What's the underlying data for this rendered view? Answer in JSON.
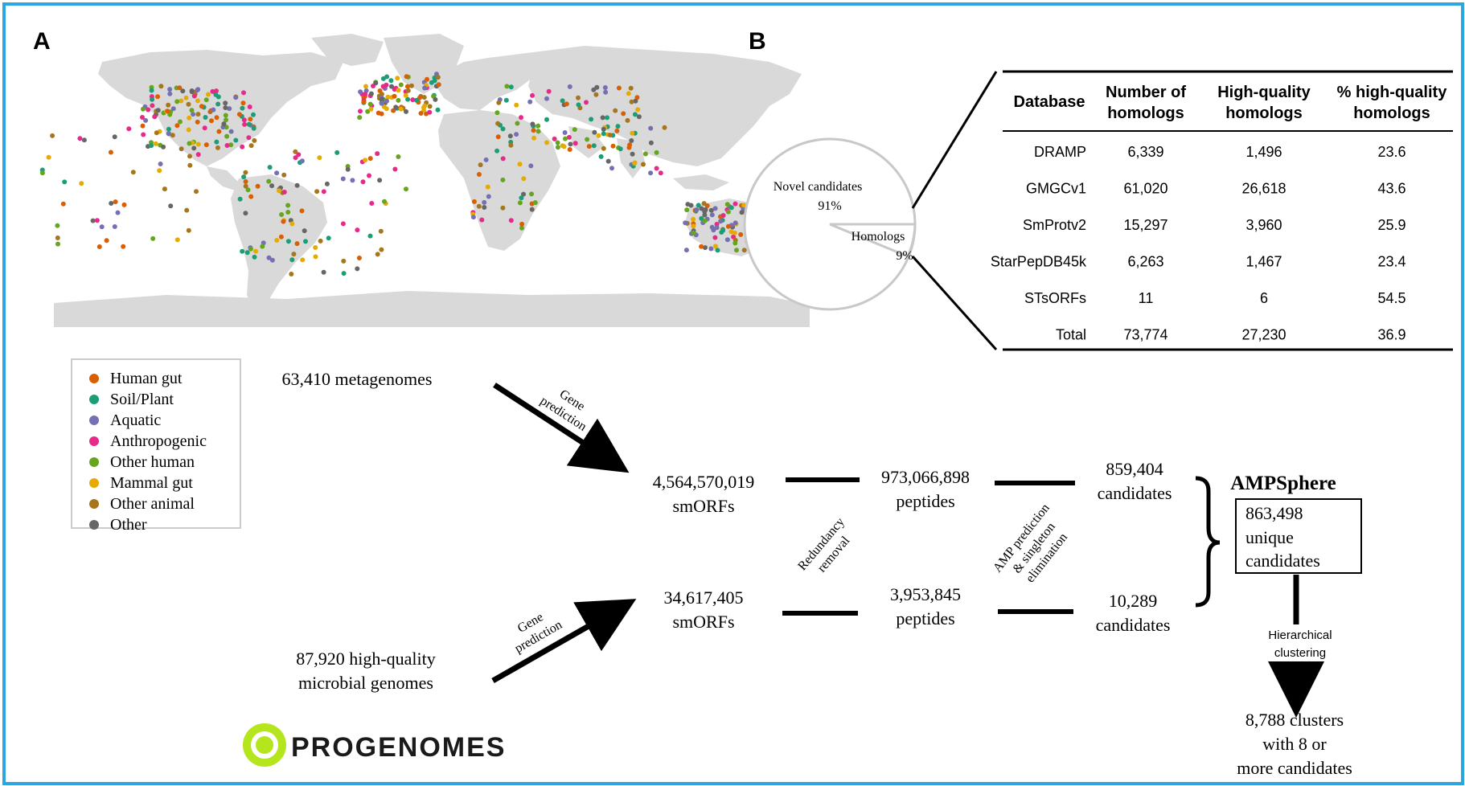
{
  "panel_a": {
    "label": "A"
  },
  "panel_b": {
    "label": "B"
  },
  "legend": {
    "items": [
      {
        "label": "Human gut",
        "color": "#d95f02"
      },
      {
        "label": "Soil/Plant",
        "color": "#1b9e77"
      },
      {
        "label": "Aquatic",
        "color": "#7570b3"
      },
      {
        "label": "Anthropogenic",
        "color": "#e7298a"
      },
      {
        "label": "Other human",
        "color": "#66a61e"
      },
      {
        "label": "Mammal gut",
        "color": "#e6ab02"
      },
      {
        "label": "Other animal",
        "color": "#a6761d"
      },
      {
        "label": "Other",
        "color": "#666666"
      }
    ]
  },
  "pie": {
    "novel_label": "Novel candidates",
    "novel_pct": "91%",
    "homolog_label": "Homologs",
    "homolog_pct": "9%"
  },
  "table": {
    "headers": [
      [
        "Database"
      ],
      [
        "Number of",
        "homologs"
      ],
      [
        "High-quality",
        "homologs"
      ],
      [
        "% high-quality",
        "homologs"
      ]
    ],
    "rows": [
      [
        "DRAMP",
        "6,339",
        "1,496",
        "23.6"
      ],
      [
        "GMGCv1",
        "61,020",
        "26,618",
        "43.6"
      ],
      [
        "SmProtv2",
        "15,297",
        "3,960",
        "25.9"
      ],
      [
        "StarPepDB45k",
        "6,263",
        "1,467",
        "23.4"
      ],
      [
        "STsORFs",
        "11",
        "6",
        "54.5"
      ],
      [
        "Total",
        "73,774",
        "27,230",
        "36.9"
      ]
    ]
  },
  "flow": {
    "metagenomes": "63,410 metagenomes",
    "genomes_line1": "87,920 high-quality",
    "genomes_line2": "microbial genomes",
    "gene_prediction_1": "Gene",
    "gene_prediction_2": "prediction",
    "smorfs_top_count": "4,564,570,019",
    "smorfs_top_unit": "smORFs",
    "smorfs_bottom_count": "34,617,405",
    "smorfs_bottom_unit": "smORFs",
    "redundancy_1": "Redundancy",
    "redundancy_2": "removal",
    "peptides_top_count": "973,066,898",
    "peptides_top_unit": "peptides",
    "peptides_bottom_count": "3,953,845",
    "peptides_bottom_unit": "peptides",
    "amp_1": "AMP prediction",
    "amp_2": "& singleton",
    "amp_3": "elimination",
    "cand_top_count": "859,404",
    "cand_top_unit": "candidates",
    "cand_bottom_count": "10,289",
    "cand_bottom_unit": "candidates",
    "ampsphere": "AMPSphere",
    "unique_1": "863,498",
    "unique_2": "unique",
    "unique_3": "candidates",
    "hier_1": "Hierarchical",
    "hier_2": "clustering",
    "clusters_1": "8,788 clusters",
    "clusters_2": "with 8 or",
    "clusters_3": "more candidates",
    "logo_text": "PROGENOMES"
  }
}
